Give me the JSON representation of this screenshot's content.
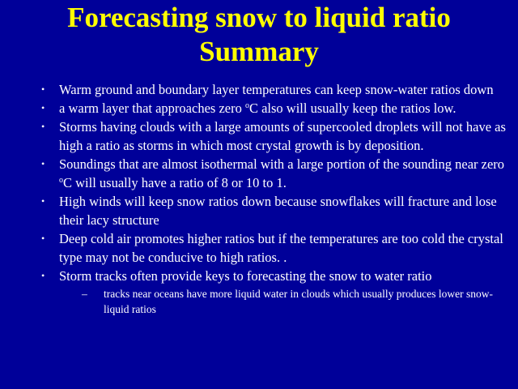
{
  "title": {
    "line1": "Forecasting snow to liquid ratio",
    "line2": "Summary"
  },
  "bullets": [
    {
      "text": "Warm ground and boundary layer temperatures can keep snow-water ratios down"
    },
    {
      "before": "a warm layer that approaches zero ",
      "sup": "o",
      "after": "C also will usually keep the ratios low."
    },
    {
      "text": "Storms having clouds with a large amounts of supercooled droplets will not have as high a ratio as storms in which most crystal growth is by deposition."
    },
    {
      "before": "Soundings that are almost isothermal with a large portion of the sounding near zero ",
      "sup": "o",
      "after": "C will usually have a ratio of 8 or 10 to 1."
    },
    {
      "text": "High winds will keep snow ratios down because snowflakes will fracture and lose their lacy structure"
    },
    {
      "text": "Deep cold air promotes higher ratios but if the temperatures are too cold the crystal type may not be conducive to high ratios. ."
    },
    {
      "text": "Storm tracks often provide keys to forecasting the snow to water ratio"
    }
  ],
  "sub_bullet": {
    "dash": "–",
    "text": "tracks near oceans have more liquid water in clouds which usually produces lower snow-liquid ratios"
  },
  "colors": {
    "background": "#000099",
    "title": "#ffff00",
    "body_text": "#ffffff"
  }
}
